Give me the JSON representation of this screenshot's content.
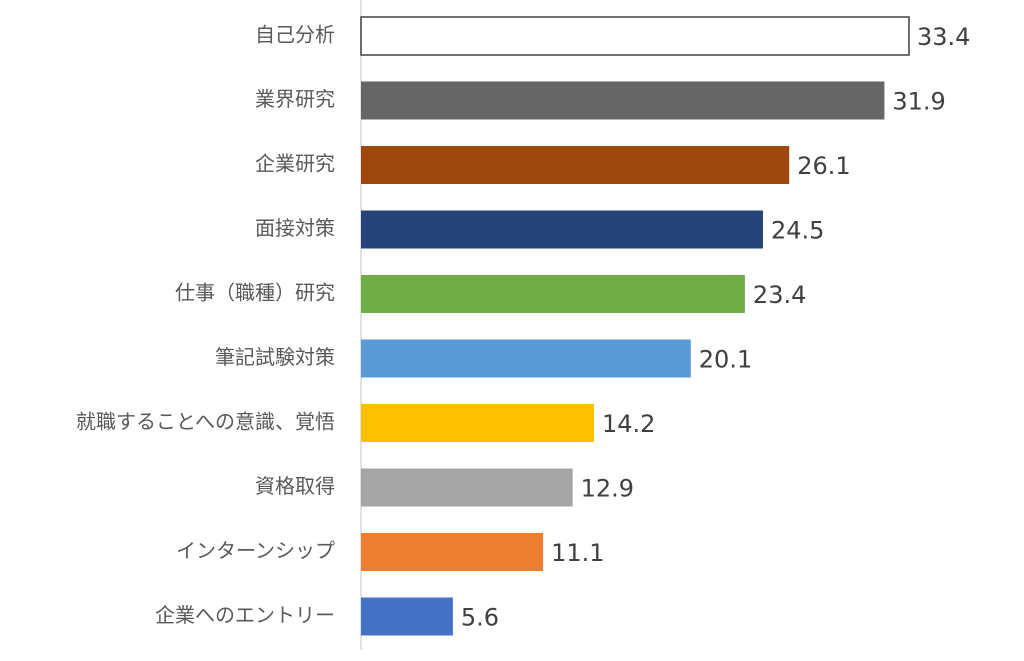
{
  "chart_data": {
    "type": "bar",
    "orientation": "horizontal",
    "categories": [
      "自己分析",
      "業界研究",
      "企業研究",
      "面接対策",
      "仕事（職種）研究",
      "筆記試験対策",
      "就職することへの意識、覚悟",
      "資格取得",
      "インターンシップ",
      "企業へのエントリー"
    ],
    "values": [
      33.4,
      31.9,
      26.1,
      24.5,
      23.4,
      20.1,
      14.2,
      12.9,
      11.1,
      5.6
    ],
    "colors": [
      "#ffffff",
      "#666666",
      "#9e480e",
      "#264478",
      "#70ad47",
      "#5b9bd5",
      "#ffc000",
      "#a5a5a5",
      "#ed7d31",
      "#4472c4"
    ]
  }
}
